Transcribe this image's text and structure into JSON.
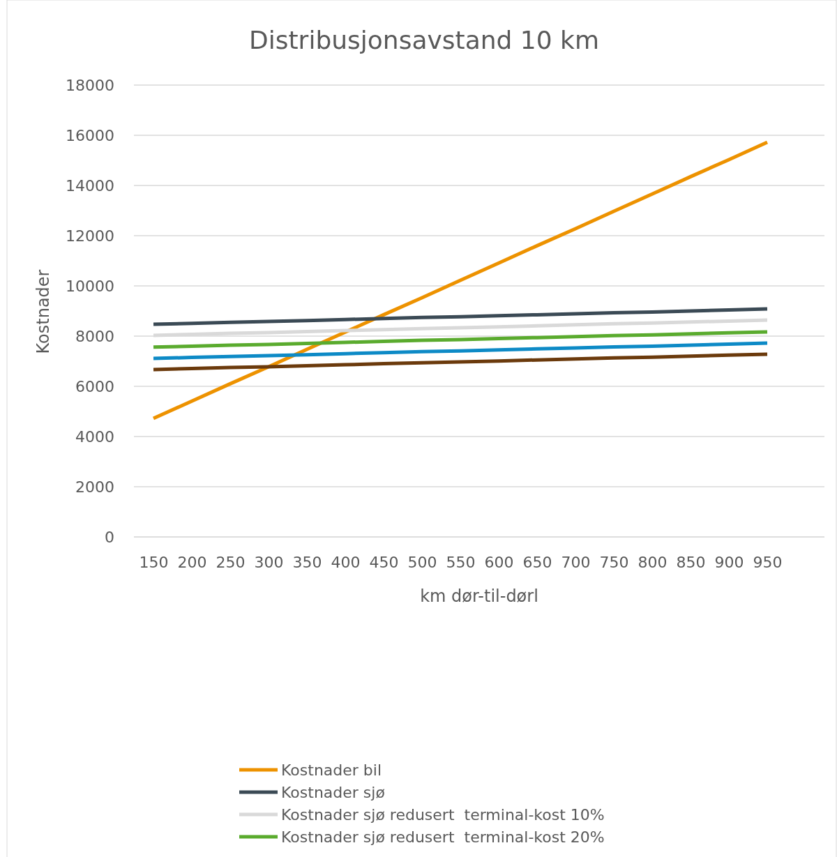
{
  "chart_data": {
    "type": "line",
    "title": "Distribusjonsavstand 10 km",
    "xlabel": "km dør-til-dørl",
    "ylabel": "Kostnader",
    "categories": [
      "150",
      "200",
      "250",
      "300",
      "350",
      "400",
      "450",
      "500",
      "550",
      "600",
      "650",
      "700",
      "750",
      "800",
      "850",
      "900",
      "950"
    ],
    "ylim": [
      0,
      18000
    ],
    "yticks": [
      0,
      2000,
      4000,
      6000,
      8000,
      10000,
      12000,
      14000,
      16000,
      18000
    ],
    "grid": "y",
    "legend": "bottom",
    "marker": "none",
    "line_style": "solid",
    "series": [
      {
        "name": "Kostnader bil",
        "color": "#ed9200",
        "values": [
          4720,
          5410,
          6100,
          6780,
          7470,
          8160,
          8850,
          9530,
          10220,
          10910,
          11600,
          12280,
          12970,
          13660,
          14350,
          15030,
          15720
        ]
      },
      {
        "name": "Kostnader sjø",
        "color": "#3b4a55",
        "values": [
          8470,
          8510,
          8550,
          8580,
          8620,
          8660,
          8700,
          8740,
          8770,
          8810,
          8850,
          8890,
          8930,
          8960,
          9000,
          9040,
          9080
        ]
      },
      {
        "name": "Kostnader sjø redusert  terminal-kost 10%",
        "color": "#d9d9d9",
        "values": [
          8030,
          8070,
          8110,
          8140,
          8180,
          8220,
          8260,
          8300,
          8330,
          8370,
          8410,
          8450,
          8490,
          8520,
          8560,
          8600,
          8640
        ]
      },
      {
        "name": "Kostnader sjø redusert  terminal-kost 20%",
        "color": "#5aab2e",
        "values": [
          7560,
          7600,
          7640,
          7670,
          7710,
          7750,
          7790,
          7830,
          7860,
          7900,
          7940,
          7980,
          8020,
          8050,
          8090,
          8130,
          8170
        ]
      },
      {
        "color": "#0d8ac6",
        "values": [
          7110,
          7150,
          7190,
          7220,
          7260,
          7300,
          7340,
          7380,
          7410,
          7450,
          7490,
          7530,
          7570,
          7600,
          7640,
          7680,
          7720
        ]
      },
      {
        "color": "#6b3a0c",
        "values": [
          6670,
          6710,
          6750,
          6780,
          6820,
          6860,
          6900,
          6940,
          6970,
          7010,
          7050,
          7090,
          7130,
          7160,
          7200,
          7240,
          7280
        ]
      }
    ]
  }
}
